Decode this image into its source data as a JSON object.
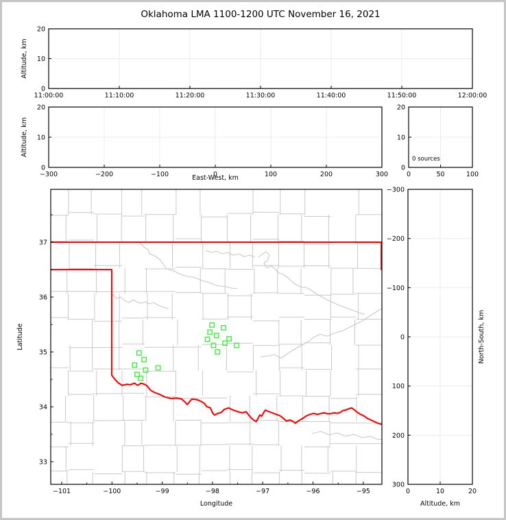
{
  "title": "Oklahoma LMA 1100-1200 UTC November 16, 2021",
  "colors": {
    "frame": "#000000",
    "grid": "#ebebeb",
    "county": "#c8c8c8",
    "state_border": "#ff0000",
    "station": "#3df03d",
    "window_border": "#c5c5c5",
    "background": "#ffffff"
  },
  "chart_data": [
    {
      "id": "time_height",
      "type": "scatter",
      "xlabel": "",
      "ylabel": "Altitude, km",
      "x_ticks": [
        "11:00:00",
        "11:10:00",
        "11:20:00",
        "11:30:00",
        "11:40:00",
        "11:50:00",
        "12:00:00"
      ],
      "y_ticks": [
        "0",
        "10",
        "20"
      ],
      "xlim": [
        "11:00:00",
        "12:00:00"
      ],
      "ylim": [
        0,
        20
      ],
      "points": []
    },
    {
      "id": "ew_height",
      "type": "scatter",
      "xlabel": "East-West, km",
      "ylabel": "Altitude, km",
      "x_ticks": [
        "−300",
        "−200",
        "−100",
        "0",
        "100",
        "200",
        "300"
      ],
      "y_ticks": [
        "0",
        "10",
        "20"
      ],
      "xlim": [
        -300,
        300
      ],
      "ylim": [
        0,
        20
      ],
      "points": []
    },
    {
      "id": "sources_hist",
      "type": "line",
      "annotation": "0 sources",
      "xlabel": "",
      "ylabel": "",
      "x_ticks": [
        "0",
        "50",
        "100"
      ],
      "y_ticks": [
        "0",
        "10",
        "20"
      ],
      "xlim": [
        0,
        100
      ],
      "ylim": [
        0,
        20
      ],
      "points": []
    },
    {
      "id": "plan_map",
      "type": "scatter",
      "xlabel": "Longitude",
      "ylabel": "Latitude",
      "x_ticks": [
        "−101",
        "−100",
        "−99",
        "−98",
        "−97",
        "−96",
        "−95"
      ],
      "y_ticks": [
        "33",
        "34",
        "35",
        "36",
        "37"
      ],
      "xlim": [
        -101.22,
        -94.63
      ],
      "ylim": [
        32.59,
        37.96
      ],
      "stations": [
        {
          "lon": -98.01,
          "lat": 35.49
        },
        {
          "lon": -97.78,
          "lat": 35.44
        },
        {
          "lon": -98.05,
          "lat": 35.36
        },
        {
          "lon": -97.92,
          "lat": 35.3
        },
        {
          "lon": -98.1,
          "lat": 35.23
        },
        {
          "lon": -97.67,
          "lat": 35.24
        },
        {
          "lon": -97.75,
          "lat": 35.16
        },
        {
          "lon": -97.98,
          "lat": 35.12
        },
        {
          "lon": -97.52,
          "lat": 35.12
        },
        {
          "lon": -97.9,
          "lat": 35.0
        },
        {
          "lon": -99.46,
          "lat": 34.98
        },
        {
          "lon": -99.36,
          "lat": 34.86
        },
        {
          "lon": -99.55,
          "lat": 34.76
        },
        {
          "lon": -99.33,
          "lat": 34.67
        },
        {
          "lon": -99.08,
          "lat": 34.71
        },
        {
          "lon": -99.5,
          "lat": 34.59
        },
        {
          "lon": -99.43,
          "lat": 34.52
        }
      ],
      "state_border": [
        {
          "name": "kansas-line",
          "pts": [
            [
              -101.22,
              37.0
            ],
            [
              -94.63,
              37.0
            ]
          ]
        },
        {
          "name": "missouri-line",
          "pts": [
            [
              -94.64,
              37.0
            ],
            [
              -94.64,
              36.49
            ]
          ]
        },
        {
          "name": "west-border-red-river",
          "pts": [
            [
              -101.22,
              36.5
            ],
            [
              -100.004,
              36.5
            ],
            [
              -100.004,
              34.575
            ],
            [
              -99.94,
              34.5
            ],
            [
              -99.88,
              34.44
            ],
            [
              -99.8,
              34.39
            ],
            [
              -99.7,
              34.41
            ],
            [
              -99.64,
              34.4
            ],
            [
              -99.55,
              34.43
            ],
            [
              -99.49,
              34.39
            ],
            [
              -99.42,
              34.43
            ],
            [
              -99.35,
              34.41
            ],
            [
              -99.3,
              34.38
            ],
            [
              -99.23,
              34.3
            ],
            [
              -99.15,
              34.26
            ],
            [
              -99.06,
              34.23
            ],
            [
              -98.95,
              34.18
            ],
            [
              -98.82,
              34.15
            ],
            [
              -98.71,
              34.16
            ],
            [
              -98.61,
              34.14
            ],
            [
              -98.54,
              34.08
            ],
            [
              -98.5,
              34.04
            ],
            [
              -98.46,
              34.09
            ],
            [
              -98.41,
              34.14
            ],
            [
              -98.31,
              34.13
            ],
            [
              -98.23,
              34.1
            ],
            [
              -98.16,
              34.06
            ],
            [
              -98.11,
              34.0
            ],
            [
              -98.04,
              33.98
            ],
            [
              -98.0,
              33.89
            ],
            [
              -97.96,
              33.85
            ],
            [
              -97.89,
              33.88
            ],
            [
              -97.82,
              33.9
            ],
            [
              -97.77,
              33.95
            ],
            [
              -97.68,
              33.98
            ],
            [
              -97.59,
              33.94
            ],
            [
              -97.49,
              33.91
            ],
            [
              -97.41,
              33.89
            ],
            [
              -97.33,
              33.91
            ],
            [
              -97.28,
              33.85
            ],
            [
              -97.22,
              33.79
            ],
            [
              -97.17,
              33.75
            ],
            [
              -97.13,
              33.73
            ],
            [
              -97.08,
              33.81
            ],
            [
              -97.06,
              33.85
            ],
            [
              -97.02,
              33.83
            ],
            [
              -96.99,
              33.88
            ],
            [
              -96.95,
              33.94
            ],
            [
              -96.87,
              33.91
            ],
            [
              -96.81,
              33.89
            ],
            [
              -96.73,
              33.86
            ],
            [
              -96.66,
              33.84
            ],
            [
              -96.59,
              33.79
            ],
            [
              -96.53,
              33.74
            ],
            [
              -96.46,
              33.76
            ],
            [
              -96.39,
              33.73
            ],
            [
              -96.35,
              33.7
            ],
            [
              -96.28,
              33.75
            ],
            [
              -96.2,
              33.79
            ],
            [
              -96.12,
              33.84
            ],
            [
              -96.06,
              33.86
            ],
            [
              -95.99,
              33.88
            ],
            [
              -95.91,
              33.86
            ],
            [
              -95.84,
              33.88
            ],
            [
              -95.78,
              33.89
            ],
            [
              -95.69,
              33.87
            ],
            [
              -95.63,
              33.88
            ],
            [
              -95.57,
              33.89
            ],
            [
              -95.52,
              33.88
            ],
            [
              -95.45,
              33.9
            ],
            [
              -95.41,
              33.93
            ],
            [
              -95.35,
              33.94
            ],
            [
              -95.3,
              33.96
            ],
            [
              -95.23,
              33.98
            ],
            [
              -95.17,
              33.94
            ],
            [
              -95.12,
              33.9
            ],
            [
              -95.05,
              33.86
            ],
            [
              -94.98,
              33.83
            ],
            [
              -94.92,
              33.79
            ],
            [
              -94.85,
              33.76
            ],
            [
              -94.78,
              33.73
            ],
            [
              -94.71,
              33.7
            ],
            [
              -94.63,
              33.68
            ]
          ]
        }
      ]
    },
    {
      "id": "ns_height",
      "type": "scatter",
      "xlabel": "Altitude, km",
      "ylabel": "North-South, km",
      "x_ticks": [
        "0",
        "10",
        "20"
      ],
      "y_ticks": [
        "300",
        "200",
        "100",
        "0",
        "−100",
        "−200",
        "−300"
      ],
      "xlim": [
        0,
        20
      ],
      "ylim": [
        -300,
        300
      ],
      "points": []
    }
  ]
}
